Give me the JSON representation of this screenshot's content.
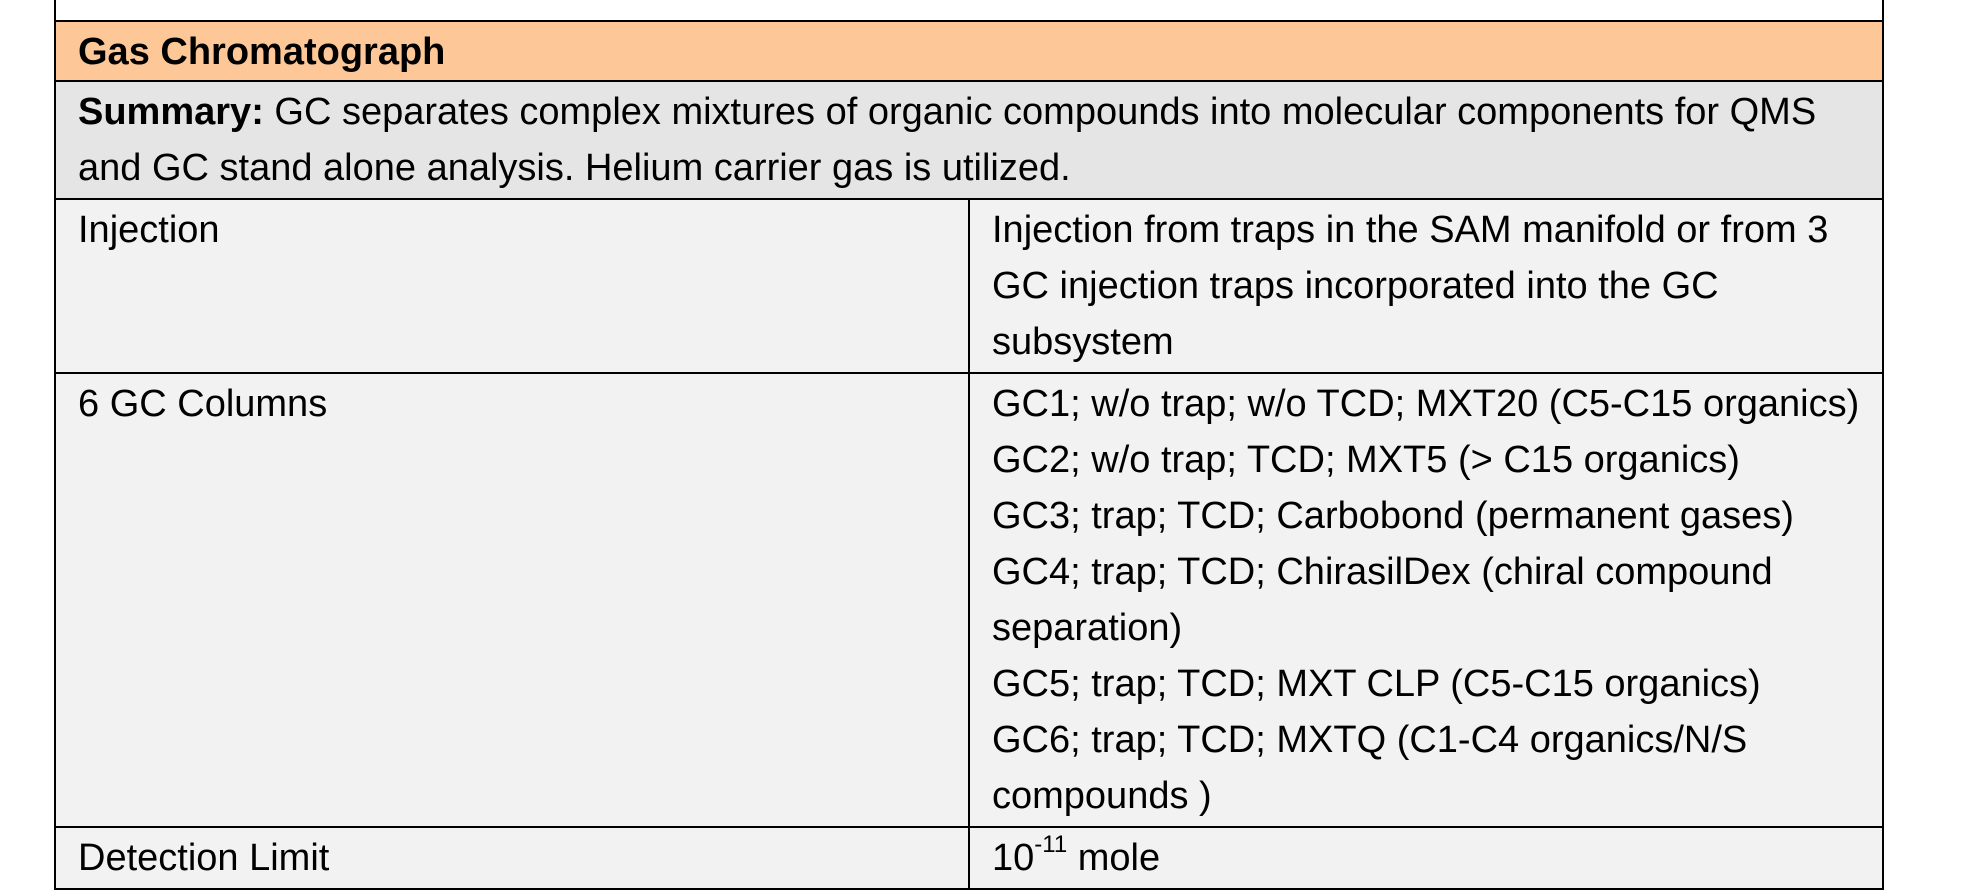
{
  "section": {
    "title": "Gas Chromatograph",
    "summary_label": "Summary:",
    "summary_text": " GC separates complex mixtures of organic compounds into molecular components for QMS and GC stand alone analysis.  Helium carrier gas is utilized."
  },
  "rows": {
    "injection": {
      "label": "Injection",
      "value": "Injection from traps in the SAM manifold or from 3 GC injection traps incorporated into the GC subsystem"
    },
    "columns": {
      "label": "6 GC Columns",
      "items": [
        "GC1; w/o trap; w/o TCD; MXT20   (C5-C15 organics)",
        "GC2; w/o trap; TCD; MXT5  (> C15 organics)",
        "GC3; trap; TCD; Carbobond (permanent gases)",
        "GC4; trap; TCD; ChirasilDex (chiral compound separation)",
        "GC5; trap; TCD; MXT CLP (C5-C15 organics)",
        "GC6; trap; TCD; MXTQ (C1-C4 organics/N/S compounds )"
      ]
    },
    "detection": {
      "label": "Detection Limit",
      "base": "10",
      "exponent": "-11",
      "unit": " mole"
    }
  }
}
